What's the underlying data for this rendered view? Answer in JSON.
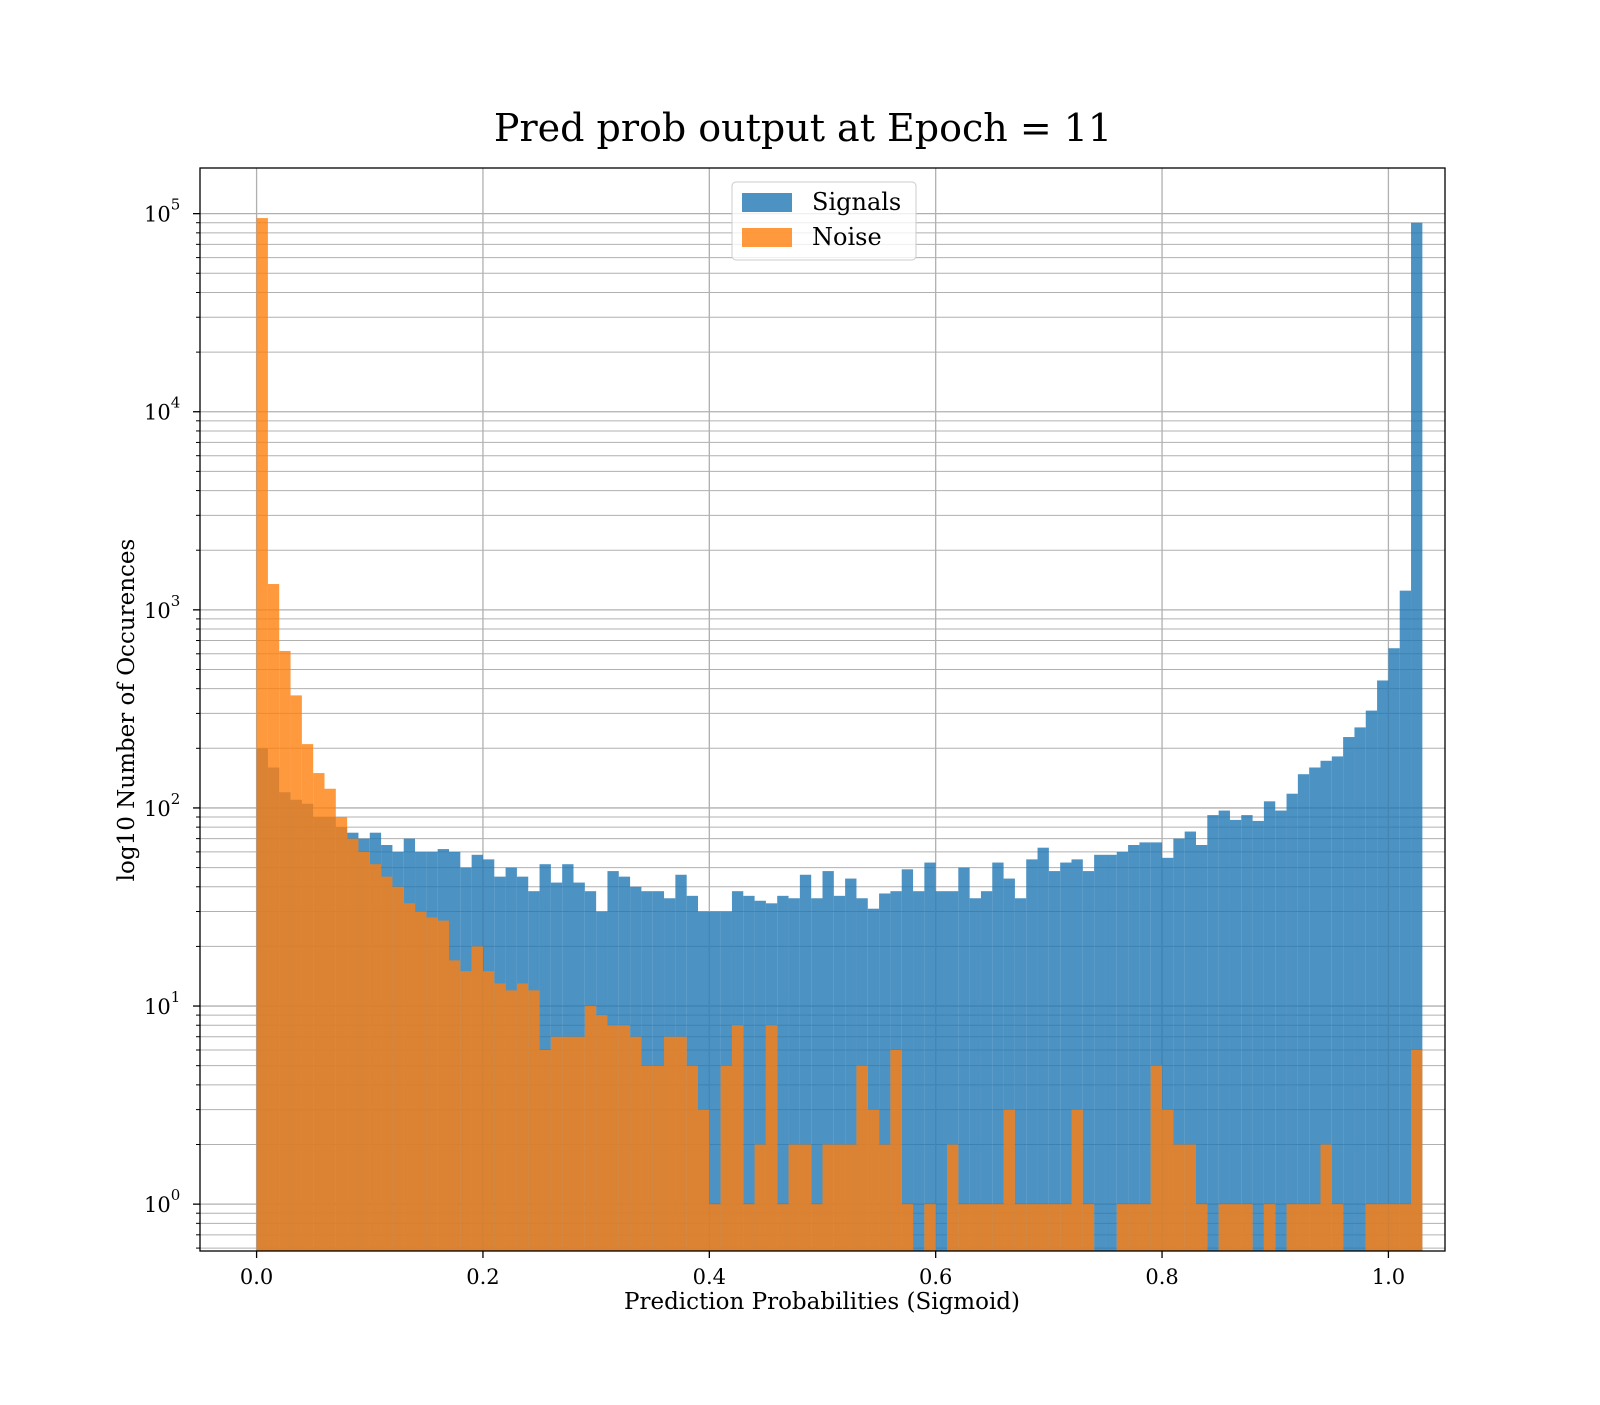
{
  "chart_data": {
    "type": "bar",
    "title": "Pred prob output at Epoch = 11",
    "xlabel": "Prediction Probabilities (Sigmoid)",
    "ylabel": "log10 Number of Occurences",
    "y_scale": "log",
    "xlim": [
      -0.05,
      1.05
    ],
    "ylim": [
      0.58,
      170000
    ],
    "x_ticks": [
      0.0,
      0.2,
      0.4,
      0.6,
      0.8,
      1.0
    ],
    "x_tick_labels": [
      "0.0",
      "0.2",
      "0.4",
      "0.6",
      "0.8",
      "1.0"
    ],
    "y_ticks": [
      1,
      10,
      100,
      1000,
      10000,
      100000
    ],
    "y_tick_exponents": [
      "0",
      "1",
      "2",
      "3",
      "4",
      "5"
    ],
    "grid": true,
    "legend": "upper-center",
    "bin_width": 0.01,
    "bin_start": 0.0,
    "series": [
      {
        "name": "Signals",
        "color": "#1f77b4",
        "opacity": 0.8,
        "values": [
          200,
          160,
          120,
          110,
          105,
          90,
          90,
          80,
          75,
          70,
          75,
          65,
          60,
          70,
          60,
          60,
          62,
          60,
          50,
          58,
          55,
          45,
          50,
          45,
          38,
          52,
          42,
          52,
          42,
          38,
          30,
          48,
          45,
          40,
          38,
          38,
          35,
          46,
          36,
          30,
          30,
          30,
          38,
          36,
          34,
          33,
          36,
          35,
          46,
          35,
          48,
          36,
          44,
          35,
          31,
          37,
          38,
          49,
          38,
          53,
          38,
          38,
          50,
          35,
          38,
          53,
          44,
          35,
          55,
          63,
          48,
          53,
          55,
          48,
          58,
          58,
          60,
          65,
          67,
          67,
          56,
          70,
          76,
          65,
          92,
          97,
          87,
          92,
          86,
          108,
          97,
          118,
          148,
          160,
          173,
          182,
          228,
          255,
          310,
          440,
          640,
          1250,
          90000
        ]
      },
      {
        "name": "Noise",
        "color": "#ff7f0e",
        "opacity": 0.8,
        "values": [
          95000,
          1350,
          620,
          370,
          210,
          150,
          125,
          90,
          70,
          60,
          52,
          45,
          40,
          33,
          30,
          28,
          27,
          17,
          15,
          20,
          15,
          13,
          12,
          13,
          12,
          6,
          7,
          7,
          7,
          10,
          9,
          8,
          8,
          7,
          5,
          5,
          7,
          7,
          5,
          3,
          1,
          5,
          8,
          1,
          2,
          8,
          1,
          2,
          2,
          1,
          2,
          2,
          2,
          5,
          3,
          2,
          6,
          1,
          0.5,
          1,
          0.5,
          2,
          1,
          1,
          1,
          1,
          3,
          1,
          1,
          1,
          1,
          1,
          3,
          1,
          0.5,
          0.5,
          1,
          1,
          1,
          5,
          3,
          2,
          2,
          1,
          0.5,
          1,
          1,
          1,
          0.5,
          1,
          0.5,
          1,
          1,
          1,
          2,
          1,
          0.5,
          0.5,
          1,
          1,
          1,
          1,
          6
        ]
      }
    ]
  }
}
